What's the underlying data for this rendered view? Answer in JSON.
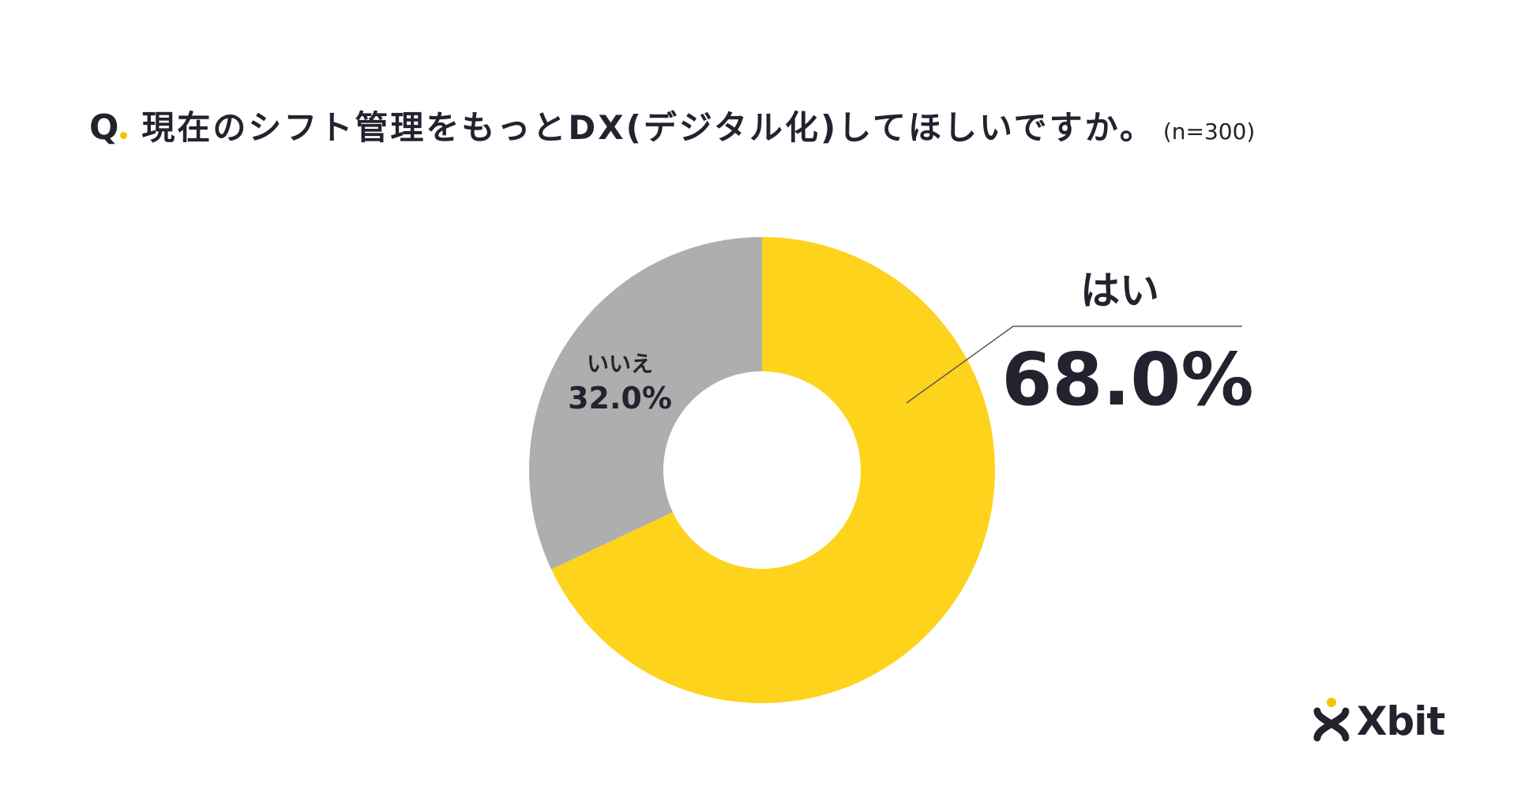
{
  "title": {
    "q": "Q",
    "text": "現在のシフト管理をもっとDX(デジタル化)してほしいですか。",
    "n": "(n=300)"
  },
  "chart_data": {
    "type": "pie",
    "title": "現在のシフト管理をもっとDX(デジタル化)してほしいですか。",
    "series": [
      {
        "name": "はい",
        "label": "68.0%",
        "value": 68.0,
        "color": "#fdd31c"
      },
      {
        "name": "いいえ",
        "label": "32.0%",
        "value": 32.0,
        "color": "#aeaeae"
      }
    ],
    "donut": true
  },
  "logo": {
    "text": "Xbit",
    "accent": "#f5c400"
  },
  "colors": {
    "text": "#23232f",
    "leader": "#555555"
  }
}
